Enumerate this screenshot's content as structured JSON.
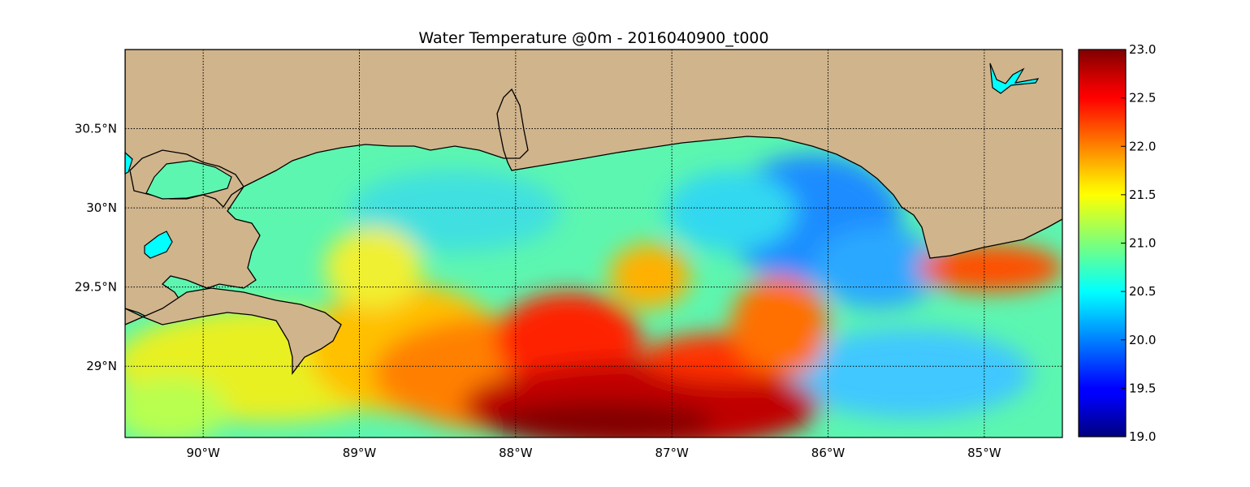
{
  "title": "Water Temperature @0m - 2016040900_t000",
  "map": {
    "lon_range": [
      -90.5,
      -84.5
    ],
    "lat_range": [
      28.55,
      31.0
    ],
    "lon_ticks": [
      {
        "value": -90,
        "label": "90°W"
      },
      {
        "value": -89,
        "label": "89°W"
      },
      {
        "value": -88,
        "label": "88°W"
      },
      {
        "value": -87,
        "label": "87°W"
      },
      {
        "value": -86,
        "label": "86°W"
      },
      {
        "value": -85,
        "label": "85°W"
      }
    ],
    "lat_ticks": [
      {
        "value": 30.5,
        "label": "30.5°N"
      },
      {
        "value": 30.0,
        "label": "30°N"
      },
      {
        "value": 29.5,
        "label": "29.5°N"
      },
      {
        "value": 29.0,
        "label": "29°N"
      }
    ],
    "grid": true,
    "land_color": "#d0b48c",
    "lake_color": "#00ffff"
  },
  "colorbar": {
    "min": 19.0,
    "max": 23.0,
    "colormap": "jet",
    "ticks": [
      "19.0",
      "19.5",
      "20.0",
      "20.5",
      "21.0",
      "21.5",
      "22.0",
      "22.5",
      "23.0"
    ]
  }
}
